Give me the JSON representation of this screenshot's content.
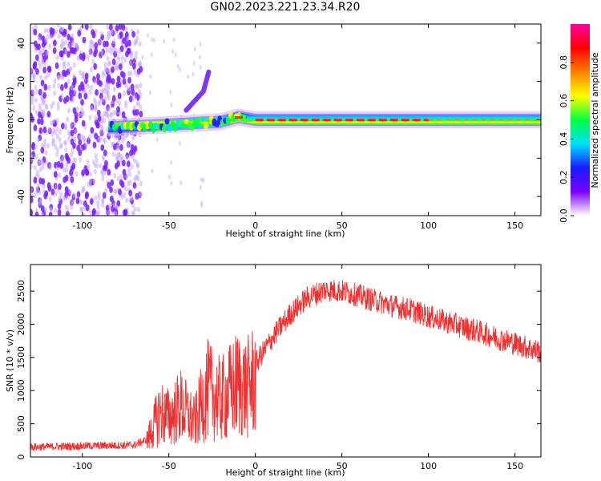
{
  "title": "GN02.2023.221.23.34.R20",
  "colors": {
    "scatter_violet": "#7a1cff",
    "scatter_light": "#c8a8ff",
    "snr_line": "#f03030",
    "colorbar_stops": [
      "#ffffff",
      "#7a00ff",
      "#1a1aff",
      "#00e0ff",
      "#00ff40",
      "#ffff00",
      "#ff8000",
      "#ff0000",
      "#ff00a0"
    ]
  },
  "chart_data": [
    {
      "type": "heatmap",
      "xlabel": "Height of straight line (km)",
      "ylabel": "Frequency (Hz)",
      "xlim": [
        -130,
        165
      ],
      "ylim": [
        -50,
        50
      ],
      "xticks": [
        -100,
        -50,
        0,
        50,
        100,
        150
      ],
      "yticks": [
        -40,
        -20,
        0,
        20,
        40
      ],
      "colorbar": {
        "label": "Normalized spectral amplitude",
        "range": [
          0.0,
          1.0
        ],
        "ticks": [
          "0.0",
          "0.2",
          "0.4",
          "0.6",
          "0.8"
        ]
      },
      "features": {
        "noise_region_x": [
          -130,
          -70
        ],
        "ridge_center": [
          [
            -85,
            -4
          ],
          [
            -60,
            -3
          ],
          [
            -40,
            -2
          ],
          [
            -20,
            -1
          ],
          [
            -10,
            1.5
          ],
          [
            0,
            0
          ],
          [
            50,
            0
          ],
          [
            100,
            0
          ],
          [
            165,
            0
          ]
        ],
        "branch": [
          [
            -40,
            5
          ],
          [
            -30,
            15
          ],
          [
            -27,
            25
          ]
        ],
        "peak_amplitude_segments": [
          [
            -12,
            -5
          ],
          [
            0,
            100
          ]
        ]
      }
    },
    {
      "type": "line",
      "xlabel": "Height of straight line (km)",
      "ylabel": "SNR (10 * v/v)",
      "xlim": [
        -130,
        165
      ],
      "ylim": [
        0,
        2900
      ],
      "xticks": [
        -100,
        -50,
        0,
        50,
        100,
        150
      ],
      "yticks": [
        0,
        500,
        1000,
        1500,
        2000,
        2500
      ],
      "envelope": [
        [
          -130,
          150
        ],
        [
          -70,
          180
        ],
        [
          -63,
          260
        ],
        [
          -55,
          800
        ],
        [
          -50,
          700
        ],
        [
          -43,
          900
        ],
        [
          -35,
          600
        ],
        [
          -28,
          1200
        ],
        [
          -20,
          1000
        ],
        [
          -10,
          1300
        ],
        [
          -5,
          1200
        ],
        [
          0,
          1400
        ],
        [
          10,
          1800
        ],
        [
          20,
          2150
        ],
        [
          30,
          2400
        ],
        [
          40,
          2520
        ],
        [
          50,
          2500
        ],
        [
          60,
          2430
        ],
        [
          70,
          2350
        ],
        [
          80,
          2270
        ],
        [
          90,
          2220
        ],
        [
          100,
          2120
        ],
        [
          110,
          2040
        ],
        [
          120,
          1960
        ],
        [
          130,
          1880
        ],
        [
          140,
          1790
        ],
        [
          150,
          1710
        ],
        [
          165,
          1580
        ]
      ]
    }
  ]
}
